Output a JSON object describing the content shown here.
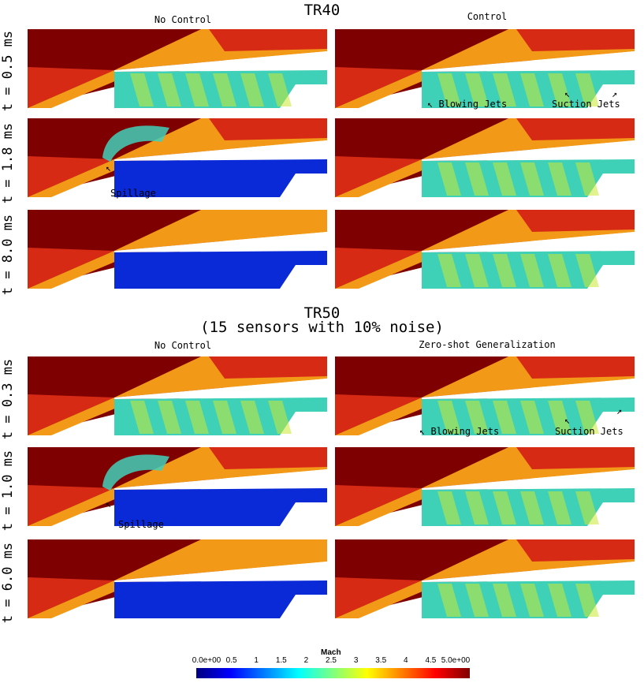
{
  "sections": [
    {
      "title": "TR40",
      "subtitle": "",
      "left_column": "No Control",
      "right_column": "Control",
      "rows": [
        "t = 0.5 ms",
        "t = 1.8 ms",
        "t = 8.0 ms"
      ]
    },
    {
      "title": "TR50",
      "subtitle": "(15 sensors with 10% noise)",
      "left_column": "No Control",
      "right_column": "Zero-shot Generalization",
      "rows": [
        "t = 0.3 ms",
        "t = 1.0 ms",
        "t = 6.0 ms"
      ]
    }
  ],
  "annotations": {
    "blowing_jets": "Blowing Jets",
    "suction_jets": "Suction Jets",
    "spillage": "Spillage"
  },
  "colorbar": {
    "title": "Mach",
    "ticks": [
      "0.0e+00",
      "0.5",
      "1",
      "1.5",
      "2",
      "2.5",
      "3",
      "3.5",
      "4",
      "4.5",
      "5.0e+00"
    ],
    "range": [
      0,
      5
    ],
    "colormap": [
      "#00007f",
      "#0000ff",
      "#007fff",
      "#00ffff",
      "#7fff7f",
      "#ffff00",
      "#ff7f00",
      "#ff0000",
      "#7f0000"
    ]
  },
  "colors": {
    "high_mach": "#7f0000",
    "free_stream": "#d62a14",
    "post_shock": "#f29a18",
    "inlet_flow": "#3fd0b8",
    "subsonic": "#0a2ad8"
  }
}
